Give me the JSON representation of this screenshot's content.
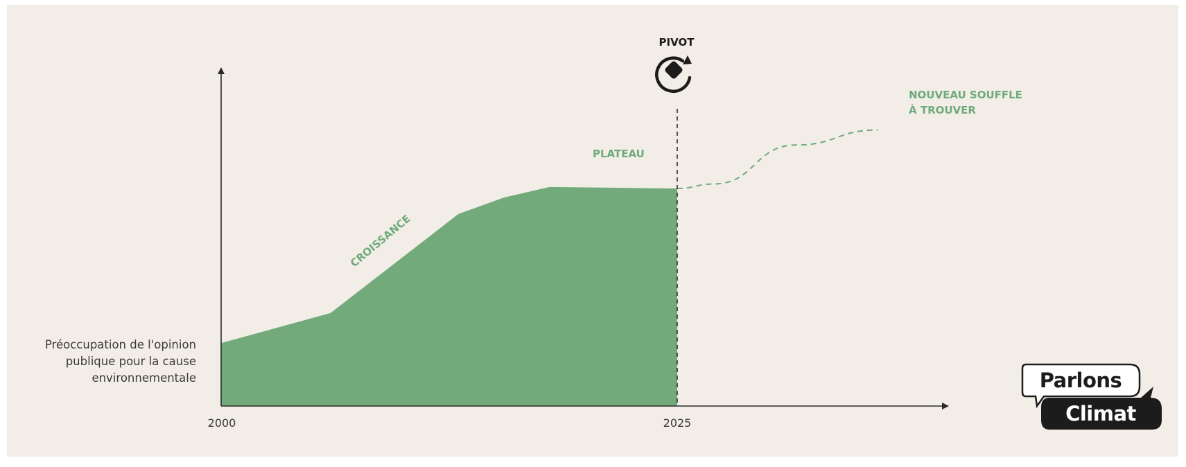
{
  "chart_data": {
    "type": "area",
    "x": [
      2000,
      2006,
      2013,
      2015.5,
      2018,
      2025
    ],
    "values": [
      21,
      31,
      64,
      69.5,
      73,
      72.5
    ],
    "projection": {
      "style": "dashed",
      "x": [
        2025,
        2027,
        2031.5,
        2036
      ],
      "values": [
        72.5,
        74,
        87,
        92
      ]
    },
    "ylim": [
      0,
      100
    ],
    "xlim": [
      2000,
      2040
    ],
    "x_ticks": [
      "2000",
      "2025"
    ],
    "ylabel_lines": [
      "Préoccupation de l'opinion",
      "publique pour la cause",
      "environnementale"
    ],
    "annotations": {
      "croissance": "CROISSANCE",
      "plateau": "PLATEAU",
      "pivot": "PIVOT",
      "nouveau_line1": "NOUVEAU SOUFFLE",
      "nouveau_line2": "À TROUVER"
    },
    "area_color": "#72aa7c",
    "accent_color": "#6faa7b"
  },
  "logo": {
    "line1": "Parlons",
    "line2": "Climat"
  }
}
